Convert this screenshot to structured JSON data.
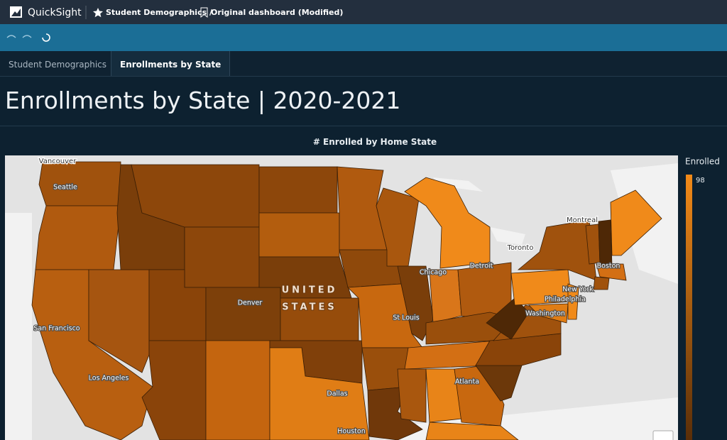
{
  "header": {
    "app": "QuickSight",
    "breadcrumb": "Student Demographics /",
    "dashboard": "Original dashboard (Modified)"
  },
  "tabs": [
    "Student Demographics",
    "Enrollments by State"
  ],
  "title": "Enrollments by State | 2020-2021",
  "visual": {
    "title": "# Enrolled by Home State",
    "legend_title": "Enrolled",
    "legend_max": 98,
    "map_labels": [
      "Vancouver",
      "Seattle",
      "San Francisco",
      "Los Angeles",
      "Denver",
      "Dallas",
      "Houston",
      "St Louis",
      "Chicago",
      "Detroit",
      "Toronto",
      "Montreal",
      "Boston",
      "New York",
      "Philadelphia",
      "Washington",
      "Atlanta"
    ],
    "country_label": [
      "UNITED",
      "STATES"
    ]
  }
}
